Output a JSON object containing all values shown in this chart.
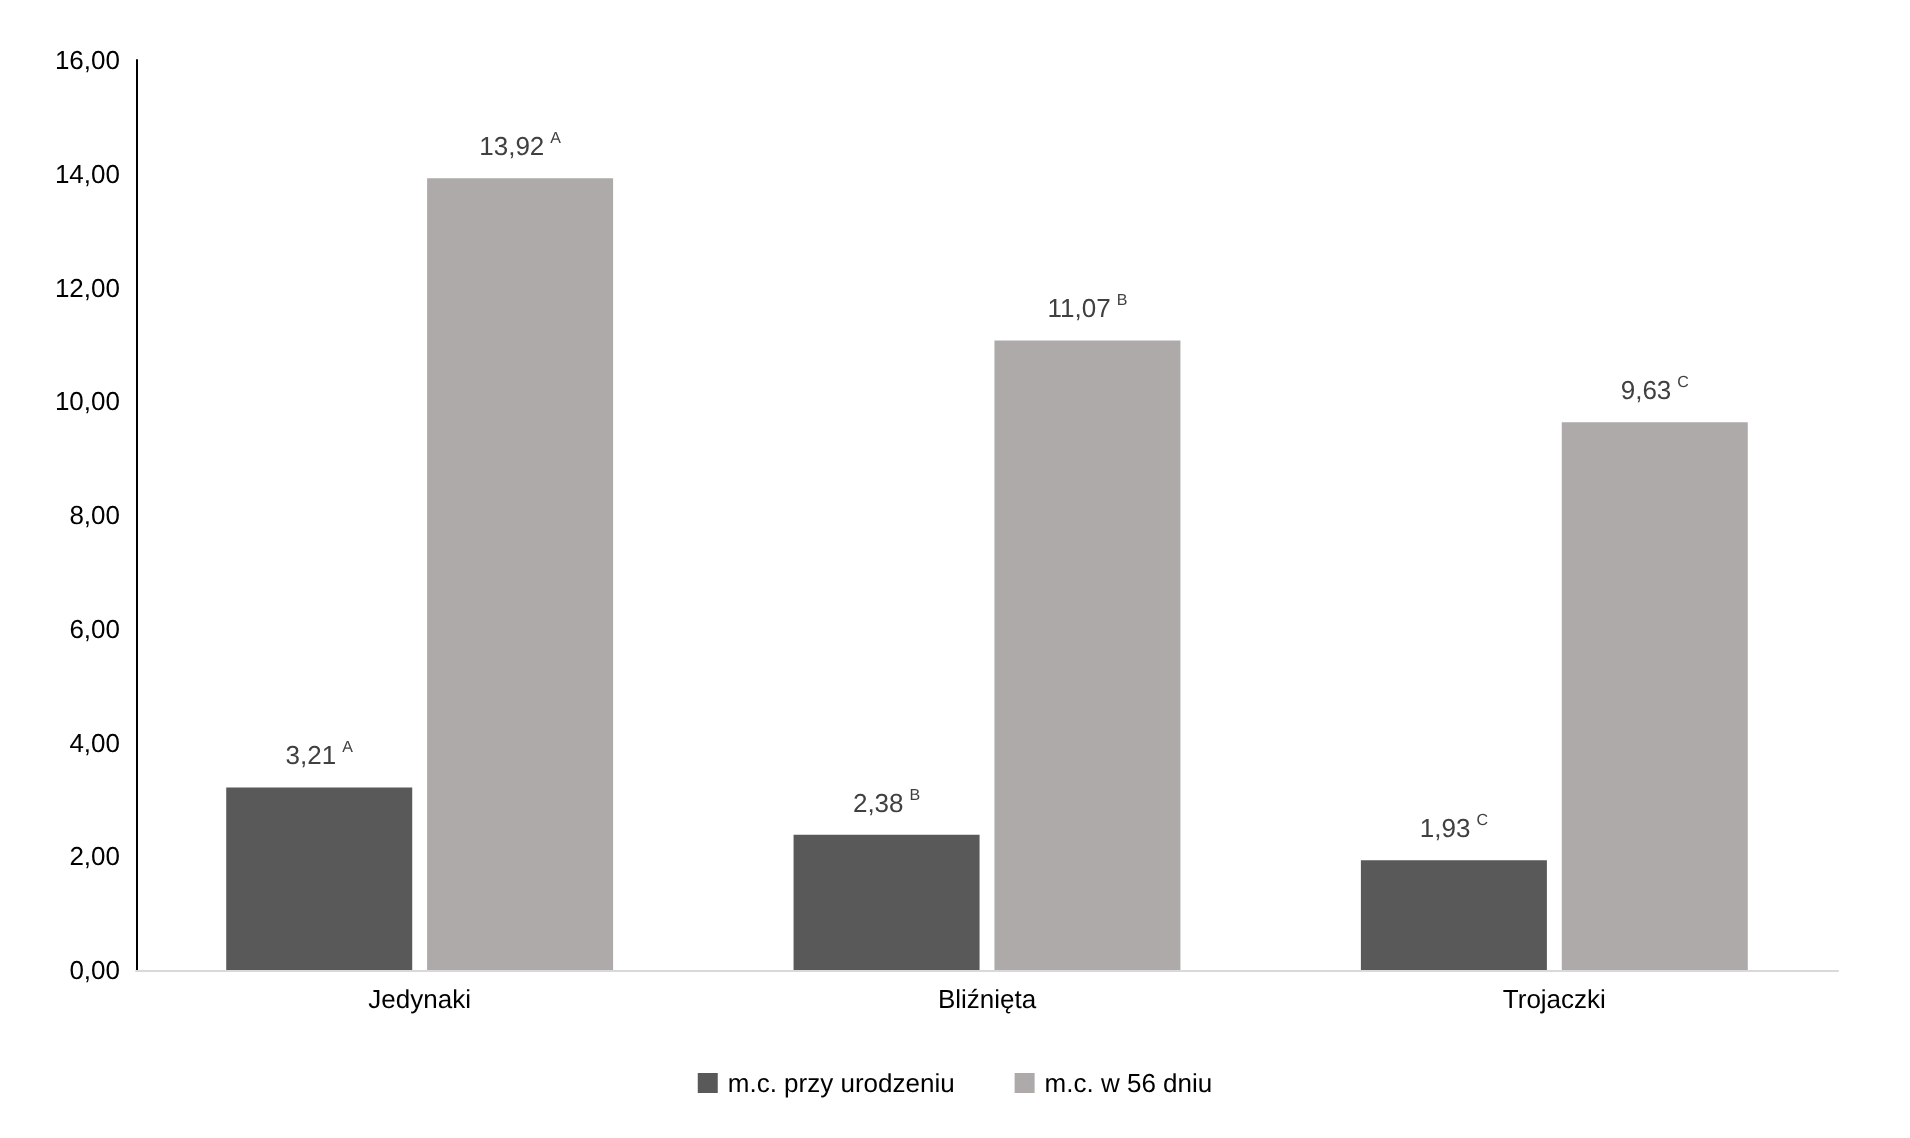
{
  "chart_data": {
    "type": "bar",
    "categories": [
      "Jedynaki",
      "Bliźnięta",
      "Trojaczki"
    ],
    "series": [
      {
        "name": "m.c. przy urodzeniu",
        "color": "#595959",
        "values": [
          3.21,
          2.38,
          1.93
        ],
        "value_labels": [
          "3,21$^{A}$",
          "2,38$^{B}$",
          "1,93$^{C}$"
        ]
      },
      {
        "name": "m.c. w 56 dniu",
        "color": "#aeaaaa",
        "values": [
          13.92,
          11.07,
          9.63
        ],
        "value_labels": [
          "13,92$^{A}$",
          "11,07$^{B}$",
          "9,63$^{C}$"
        ]
      }
    ],
    "ylim": [
      0,
      16
    ],
    "yticks": [
      {
        "value": 0,
        "label": "0,00"
      },
      {
        "value": 2,
        "label": "2,00"
      },
      {
        "value": 4,
        "label": "4,00"
      },
      {
        "value": 6,
        "label": "6,00"
      },
      {
        "value": 8,
        "label": "8,00"
      },
      {
        "value": 10,
        "label": "10,00"
      },
      {
        "value": 12,
        "label": "12,00"
      },
      {
        "value": 14,
        "label": "14,00"
      },
      {
        "value": 16,
        "label": "16,00"
      }
    ],
    "grid": false,
    "legend": "bottom"
  }
}
